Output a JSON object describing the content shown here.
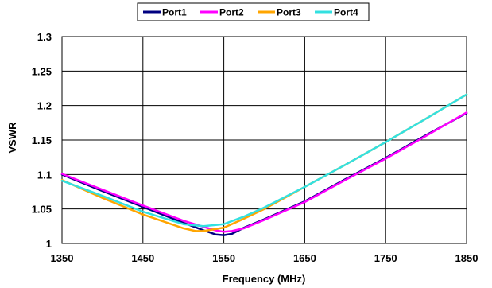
{
  "chart_data": {
    "type": "line",
    "title": "",
    "xlabel": "Frequency (MHz)",
    "ylabel": "VSWR",
    "xlim": [
      1350,
      1850
    ],
    "ylim": [
      1,
      1.3
    ],
    "xticks": [
      "1350",
      "1450",
      "1550",
      "1650",
      "1750",
      "1850"
    ],
    "yticks": [
      "1",
      "1.05",
      "1.1",
      "1.15",
      "1.2",
      "1.25",
      "1.3"
    ],
    "grid": true,
    "legend_position": "top",
    "series": [
      {
        "name": "Port1",
        "color": "#000080",
        "x": [
          1350,
          1400,
          1450,
          1500,
          1525,
          1540,
          1550,
          1560,
          1575,
          1600,
          1650,
          1700,
          1750,
          1800,
          1850
        ],
        "y": [
          1.1,
          1.076,
          1.053,
          1.03,
          1.019,
          1.013,
          1.012,
          1.014,
          1.023,
          1.035,
          1.061,
          1.093,
          1.124,
          1.157,
          1.189
        ]
      },
      {
        "name": "Port2",
        "color": "#FF00FF",
        "x": [
          1350,
          1400,
          1450,
          1500,
          1525,
          1540,
          1550,
          1560,
          1575,
          1600,
          1650,
          1700,
          1750,
          1800,
          1850
        ],
        "y": [
          1.101,
          1.078,
          1.055,
          1.033,
          1.024,
          1.019,
          1.017,
          1.018,
          1.022,
          1.034,
          1.06,
          1.092,
          1.123,
          1.156,
          1.19
        ]
      },
      {
        "name": "Port3",
        "color": "#FFA500",
        "x": [
          1350,
          1400,
          1450,
          1500,
          1515,
          1525,
          1550,
          1575,
          1600,
          1650,
          1700,
          1750,
          1800,
          1850
        ],
        "y": [
          1.092,
          1.066,
          1.042,
          1.022,
          1.018,
          1.018,
          1.023,
          1.036,
          1.05,
          1.082,
          1.114,
          1.147,
          1.181,
          1.216
        ]
      },
      {
        "name": "Port4",
        "color": "#33E0E0",
        "x": [
          1350,
          1400,
          1450,
          1500,
          1525,
          1550,
          1575,
          1600,
          1650,
          1700,
          1750,
          1800,
          1850
        ],
        "y": [
          1.091,
          1.069,
          1.046,
          1.028,
          1.025,
          1.028,
          1.039,
          1.052,
          1.082,
          1.114,
          1.147,
          1.181,
          1.216
        ]
      }
    ]
  }
}
